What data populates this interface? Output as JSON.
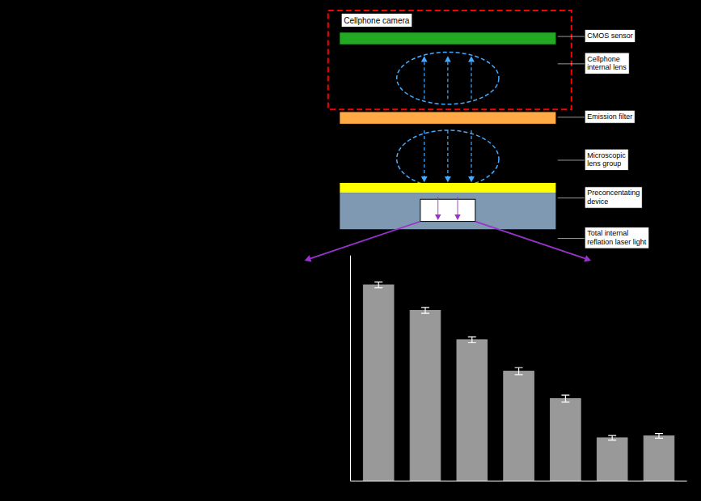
{
  "chart_data": {
    "type": "bar",
    "annotations": [
      "Cellphone camera",
      "CMOS sensor",
      "Cellphone\ninternal lens",
      "Emission filter",
      "Microscopic\nlens group",
      "Preconcentating\ndevice",
      "Total internal\nreflation laser light"
    ],
    "categories": [
      null,
      null,
      null,
      null,
      null,
      null,
      null
    ],
    "values": [
      1.0,
      0.87,
      0.72,
      0.56,
      0.42,
      0.22,
      0.23
    ],
    "errors": [
      0.015,
      0.015,
      0.015,
      0.018,
      0.018,
      0.012,
      0.012
    ],
    "color": "#999999",
    "ylim": [
      0,
      1.15
    ],
    "yticks": [],
    "tick_labels": false,
    "grid": false
  }
}
